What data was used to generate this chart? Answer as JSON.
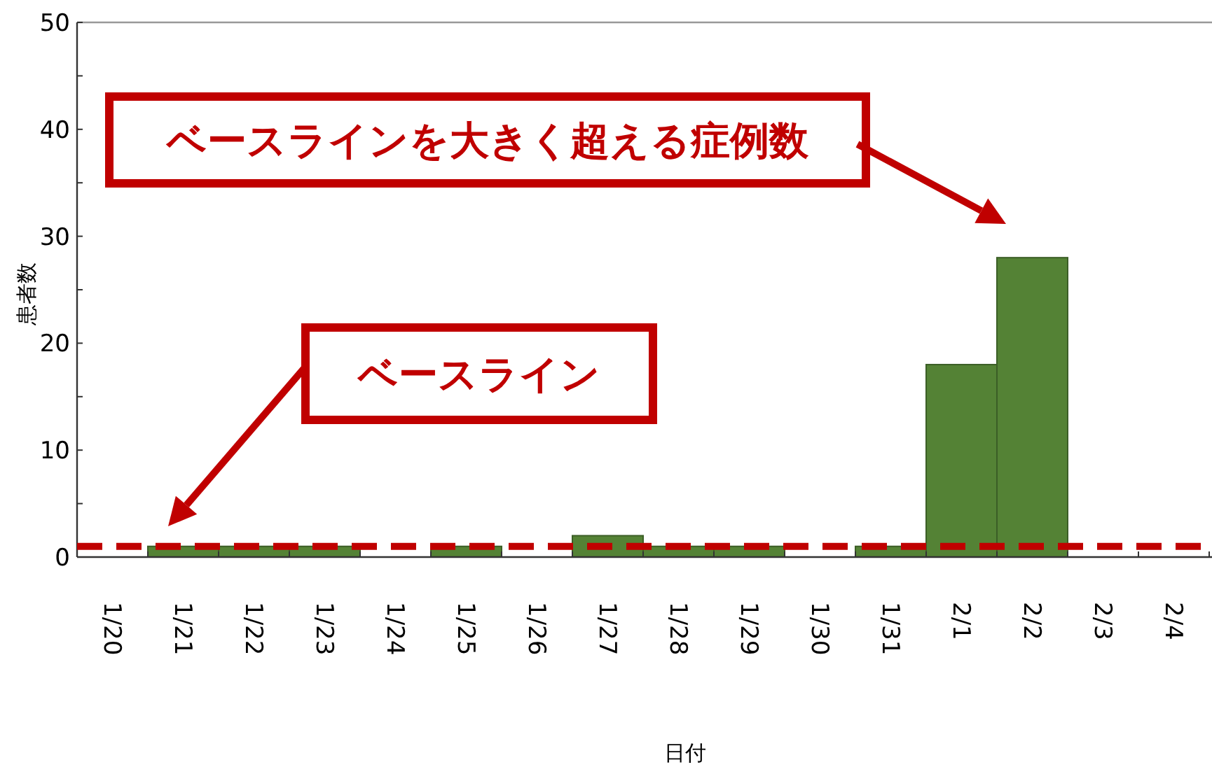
{
  "chart_data": {
    "type": "bar",
    "xlabel": "日付",
    "ylabel": "患者数",
    "categories": [
      "1/20",
      "1/21",
      "1/22",
      "1/23",
      "1/24",
      "1/25",
      "1/26",
      "1/27",
      "1/28",
      "1/29",
      "1/30",
      "1/31",
      "2/1",
      "2/2",
      "2/3",
      "2/4"
    ],
    "values": [
      0,
      1,
      1,
      1,
      0,
      1,
      0,
      2,
      1,
      1,
      0,
      1,
      18,
      28,
      0,
      0
    ],
    "color": "#548235",
    "ylim": [
      0,
      50
    ],
    "yticks": [
      0,
      {
        "value": 5,
        "label": null
      },
      10,
      {
        "value": 15,
        "label": null
      },
      20,
      {
        "value": 25,
        "label": null
      },
      30,
      {
        "value": 35,
        "label": null
      },
      40,
      {
        "value": 45,
        "label": null
      },
      50
    ],
    "ref_lines": [
      {
        "axis": "y",
        "value": 1,
        "color": "#c00000",
        "line_style": "dashed"
      }
    ],
    "annotations": [
      "ベースラインを大きく超える症例数",
      "ベースライン"
    ]
  }
}
